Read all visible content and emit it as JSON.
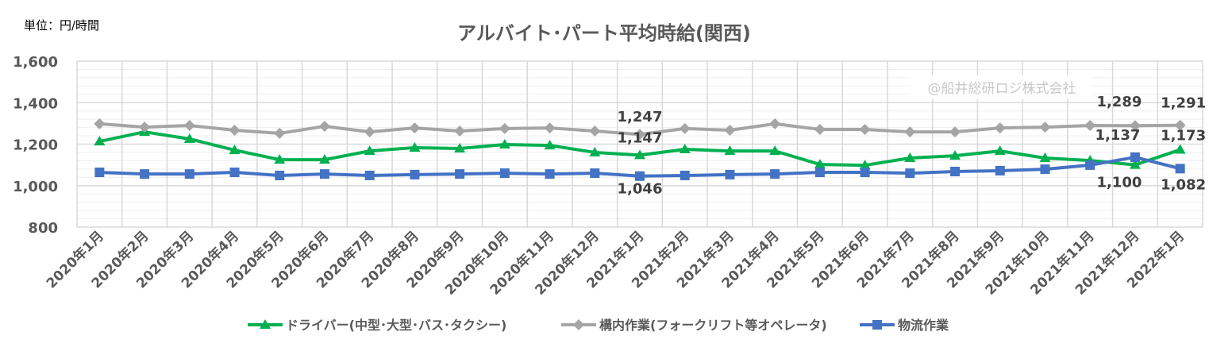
{
  "chart_data": {
    "type": "line",
    "title": "アルバイト･パート平均時給(関西)",
    "unit_label": "単位：円/時間",
    "watermark": "@船井総研ロジ株式会社",
    "ylim": [
      800,
      1600
    ],
    "yticks": [
      800,
      1000,
      1200,
      1400,
      1600
    ],
    "ytick_labels": [
      "800",
      "1,000",
      "1,200",
      "1,400",
      "1,600"
    ],
    "grid": true,
    "legend_position": "bottom",
    "categories": [
      "2020年1月",
      "2020年2月",
      "2020年3月",
      "2020年4月",
      "2020年5月",
      "2020年6月",
      "2020年7月",
      "2020年8月",
      "2020年9月",
      "2020年10月",
      "2020年11月",
      "2020年12月",
      "2021年1月",
      "2021年2月",
      "2021年3月",
      "2021年4月",
      "2021年5月",
      "2021年6月",
      "2021年7月",
      "2021年8月",
      "2021年9月",
      "2021年10月",
      "2021年11月",
      "2021年12月",
      "2022年1月"
    ],
    "series": [
      {
        "name": "ドライバー(中型･大型･バス･タクシー)",
        "color": "#00b050",
        "marker": "triangle",
        "values": [
          1213,
          1259,
          1225,
          1171,
          1125,
          1125,
          1167,
          1183,
          1179,
          1198,
          1194,
          1160,
          1147,
          1175,
          1167,
          1167,
          1102,
          1098,
          1133,
          1144,
          1167,
          1133,
          1121,
          1100,
          1173
        ]
      },
      {
        "name": "構内作業(フォークリフト等オペレータ)",
        "color": "#a5a5a5",
        "marker": "diamond",
        "values": [
          1298,
          1282,
          1290,
          1267,
          1252,
          1286,
          1259,
          1278,
          1263,
          1275,
          1278,
          1263,
          1247,
          1275,
          1267,
          1298,
          1271,
          1271,
          1259,
          1259,
          1278,
          1282,
          1290,
          1289,
          1291
        ]
      },
      {
        "name": "物流作業",
        "color": "#4472c4",
        "marker": "square",
        "values": [
          1064,
          1056,
          1056,
          1064,
          1049,
          1056,
          1049,
          1053,
          1056,
          1060,
          1056,
          1060,
          1046,
          1049,
          1053,
          1056,
          1064,
          1064,
          1060,
          1068,
          1072,
          1079,
          1099,
          1137,
          1082
        ]
      }
    ],
    "data_labels": [
      {
        "series": 1,
        "index": 12,
        "text": "1,247"
      },
      {
        "series": 0,
        "index": 12,
        "text": "1,147"
      },
      {
        "series": 2,
        "index": 12,
        "text": "1,046"
      },
      {
        "series": 1,
        "index": 23,
        "text": "1,289"
      },
      {
        "series": 2,
        "index": 23,
        "text": "1,137"
      },
      {
        "series": 0,
        "index": 23,
        "text": "1,100"
      },
      {
        "series": 1,
        "index": 24,
        "text": "1,291"
      },
      {
        "series": 0,
        "index": 24,
        "text": "1,173"
      },
      {
        "series": 2,
        "index": 24,
        "text": "1,082"
      }
    ]
  }
}
